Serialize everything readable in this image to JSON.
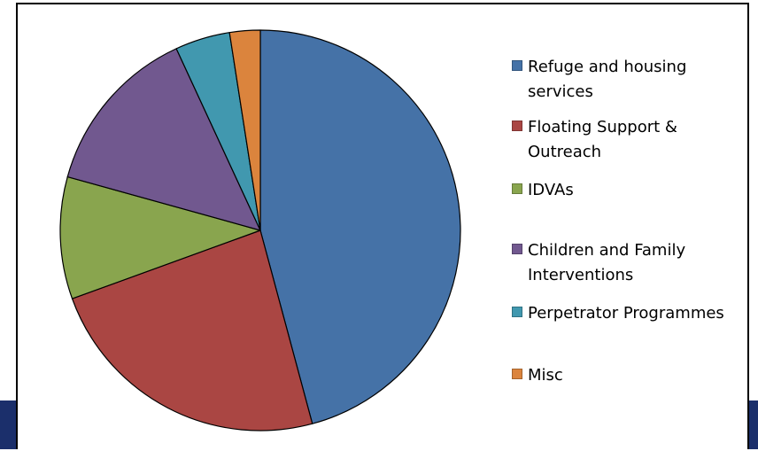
{
  "chart_data": {
    "type": "pie",
    "title": "",
    "legend_position": "right",
    "categories": [
      "Refuge and housing services",
      "Floating Support & Outreach",
      "IDVAs",
      "Children and Family Interventions",
      "Perpetrator Programmes",
      "Misc"
    ],
    "values": [
      46.5,
      24.0,
      10.0,
      14.0,
      4.5,
      2.5
    ],
    "unit": "%",
    "colors": [
      "#4572a7",
      "#aa4643",
      "#89a54e",
      "#71588f",
      "#4198af",
      "#db843d"
    ],
    "start_angle_deg": 0,
    "direction": "clockwise"
  },
  "legend": {
    "items": [
      {
        "label": "Refuge and housing services",
        "color": "#4572a7"
      },
      {
        "label": "Floating Support & Outreach",
        "color": "#aa4643"
      },
      {
        "label": "IDVAs",
        "color": "#89a54e"
      },
      {
        "label": "Children and Family Interventions",
        "color": "#71588f"
      },
      {
        "label": "Perpetrator Programmes",
        "color": "#4198af"
      },
      {
        "label": "Misc",
        "color": "#db843d"
      }
    ]
  },
  "slide": {
    "accent_color": "#1b2f6b"
  }
}
